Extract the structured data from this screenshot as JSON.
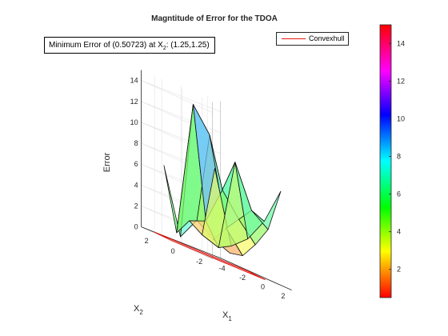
{
  "chart_data": {
    "type": "surface3d",
    "title": "Magntitude of Error for the TDOA",
    "xlabel": "X",
    "xlabel_sub": "1",
    "ylabel": "X",
    "ylabel_sub": "2",
    "zlabel": "Error",
    "xlim": [
      -4,
      3
    ],
    "ylim": [
      -3,
      3
    ],
    "zlim": [
      0,
      15
    ],
    "x_ticks": [
      "-4",
      "-2",
      "0",
      "2"
    ],
    "y_ticks": [
      "-2",
      "0",
      "2"
    ],
    "z_ticks": [
      "0",
      "2",
      "4",
      "6",
      "8",
      "10",
      "12",
      "14"
    ],
    "grid": true,
    "colormap": "hsv",
    "colorbar_range": [
      0.5,
      15
    ],
    "colorbar_ticks": [
      "2",
      "4",
      "6",
      "8",
      "10",
      "12",
      "14"
    ],
    "legend": {
      "placement": "top-right",
      "entries": [
        {
          "name": "Convexhull",
          "color": "#e8140c"
        }
      ]
    },
    "annotation": {
      "prefix": "Minimum Error of (0.50723) at X",
      "sub": "2",
      "suffix": ": (1.25,1.25)"
    },
    "minimum": {
      "error": 0.50723,
      "x1": 1.25,
      "x2": 1.25
    },
    "convex_hull": [
      [
        -4,
        2
      ],
      [
        -1,
        3
      ],
      [
        3,
        -1
      ],
      [
        0,
        -2
      ]
    ],
    "surface_x1": [
      -2.75,
      -1.5,
      -0.25,
      1.0,
      2.25
    ],
    "surface_x2": [
      -2.75,
      -1.5,
      -0.25,
      1.0,
      2.25
    ],
    "surface_error": [
      [
        0.9,
        1.2,
        2.8,
        4.8,
        9.0
      ],
      [
        1.6,
        3.2,
        4.6,
        6.0,
        5.5
      ],
      [
        2.8,
        11.5,
        6.8,
        10.0,
        3.2
      ],
      [
        0.6,
        13.8,
        3.2,
        1.2,
        1.9
      ],
      [
        6.8,
        0.9,
        2.6,
        1.8,
        8.7
      ]
    ]
  }
}
